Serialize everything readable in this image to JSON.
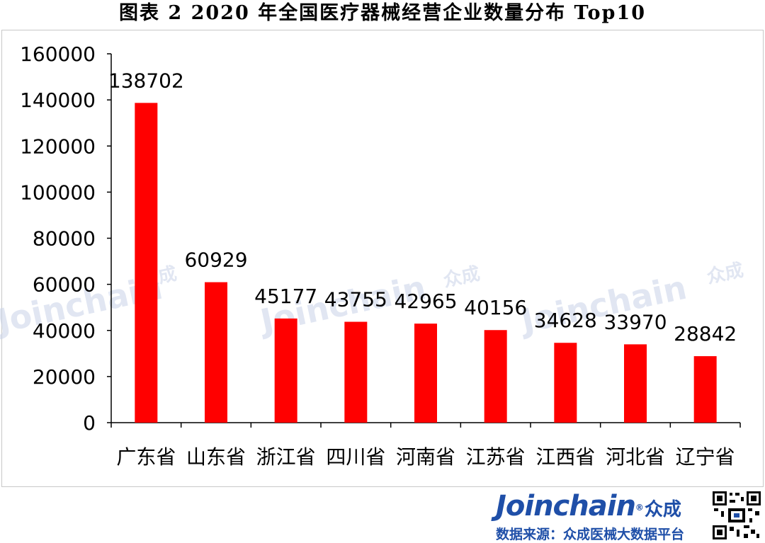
{
  "title": "图表 2   2020 年全国医疗器械经营企业数量分布 Top10",
  "watermark": {
    "text": "Joinchain",
    "cn": "众成"
  },
  "footer": {
    "logo_text": "Joinchain",
    "logo_cn": "众成",
    "source": "数据来源：众成医械大数据平台"
  },
  "colors": {
    "bar": "#ff0000",
    "brand": "#1f4fa8"
  },
  "chart_data": {
    "type": "bar",
    "title": "",
    "xlabel": "",
    "ylabel": "",
    "categories": [
      "广东省",
      "山东省",
      "浙江省",
      "四川省",
      "河南省",
      "江苏省",
      "江西省",
      "河北省",
      "辽宁省"
    ],
    "values": [
      138702,
      60929,
      45177,
      43755,
      42965,
      40156,
      34628,
      33970,
      28842
    ],
    "ylim": [
      0,
      160000
    ],
    "yticks": [
      "0",
      "20000",
      "40000",
      "60000",
      "80000",
      "100000",
      "120000",
      "140000",
      "160000"
    ],
    "data_labels": [
      "138702",
      "60929",
      "45177",
      "43755",
      "42965",
      "40156",
      "34628",
      "33970",
      "28842"
    ],
    "grid": false,
    "legend": "none"
  }
}
